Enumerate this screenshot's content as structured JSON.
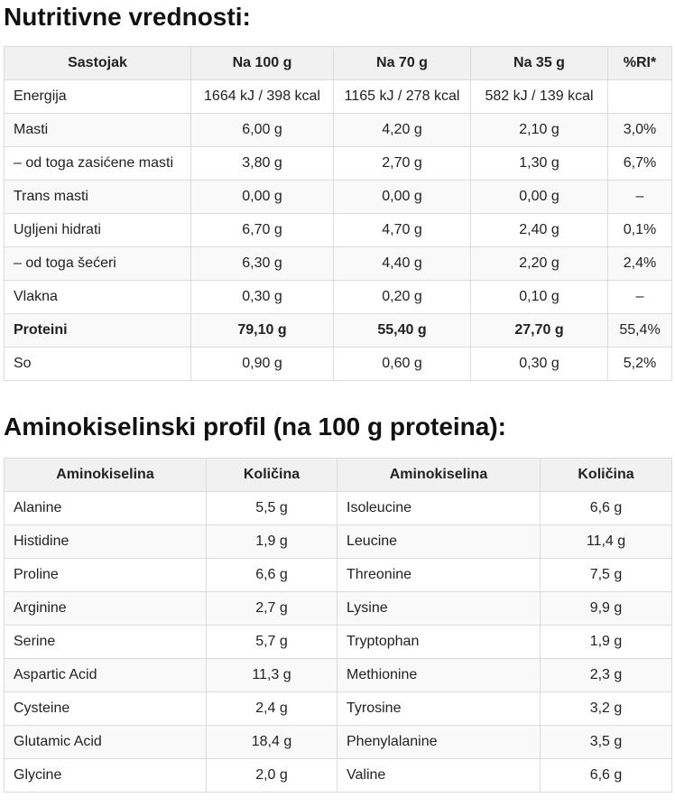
{
  "nutrition": {
    "title": "Nutritivne vrednosti:",
    "headers": [
      "Sastojak",
      "Na 100 g",
      "Na 70 g",
      "Na 35 g",
      "%RI*"
    ],
    "rows": [
      [
        "Energija",
        "1664 kJ / 398 kcal",
        "1165 kJ / 278 kcal",
        "582 kJ / 139 kcal",
        ""
      ],
      [
        "Masti",
        "6,00 g",
        "4,20 g",
        "2,10 g",
        "3,0%"
      ],
      [
        "– od toga zasićene masti",
        "3,80 g",
        "2,70 g",
        "1,30 g",
        "6,7%"
      ],
      [
        "Trans masti",
        "0,00 g",
        "0,00 g",
        "0,00 g",
        "–"
      ],
      [
        "Ugljeni hidrati",
        "6,70 g",
        "4,70 g",
        "2,40 g",
        "0,1%"
      ],
      [
        "– od toga šećeri",
        "6,30 g",
        "4,40 g",
        "2,20 g",
        "2,4%"
      ],
      [
        "Vlakna",
        "0,30 g",
        "0,20 g",
        "0,10 g",
        "–"
      ],
      [
        "Proteini",
        "79,10 g",
        "55,40 g",
        "27,70 g",
        "55,4%"
      ],
      [
        "So",
        "0,90 g",
        "0,60 g",
        "0,30 g",
        "5,2%"
      ]
    ]
  },
  "amino": {
    "title": "Aminokiselinski profil (na 100 g proteina):",
    "headers": [
      "Aminokiselina",
      "Količina",
      "Aminokiselina",
      "Količina"
    ],
    "rows": [
      [
        "Alanine",
        "5,5 g",
        "Isoleucine",
        "6,6 g"
      ],
      [
        "Histidine",
        "1,9 g",
        "Leucine",
        "11,4 g"
      ],
      [
        "Proline",
        "6,6 g",
        "Threonine",
        "7,5 g"
      ],
      [
        "Arginine",
        "2,7 g",
        "Lysine",
        "9,9 g"
      ],
      [
        "Serine",
        "5,7 g",
        "Tryptophan",
        "1,9 g"
      ],
      [
        "Aspartic Acid",
        "11,3 g",
        "Methionine",
        "2,3 g"
      ],
      [
        "Cysteine",
        "2,4 g",
        "Tyrosine",
        "3,2 g"
      ],
      [
        "Glutamic Acid",
        "18,4 g",
        "Phenylalanine",
        "3,5 g"
      ],
      [
        "Glycine",
        "2,0 g",
        "Valine",
        "6,6 g"
      ]
    ]
  }
}
